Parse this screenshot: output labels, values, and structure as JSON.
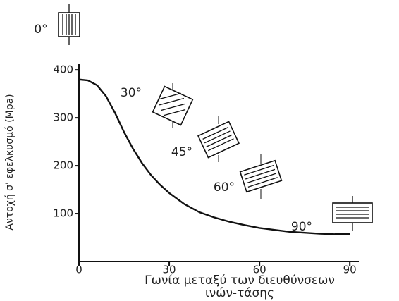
{
  "chart_data": {
    "type": "line",
    "y_label": "Αντοχή σ' εφελκυσμό (Mpa)",
    "x_label": [
      "Γωνία μεταξύ των διευθύνσεων",
      "ινών-τάσης"
    ],
    "annotations": [
      "0°",
      "30°",
      "45°",
      "60°",
      "90°"
    ],
    "x": [
      0,
      3,
      6,
      9,
      12,
      15,
      18,
      21,
      24,
      27,
      30,
      35,
      40,
      45,
      50,
      55,
      60,
      65,
      70,
      75,
      80,
      85,
      90
    ],
    "series": [
      {
        "color": "#111111",
        "values": [
          380,
          378,
          368,
          345,
          310,
          270,
          235,
          205,
          180,
          160,
          143,
          120,
          103,
          92,
          83,
          76,
          70,
          66,
          62,
          60,
          58,
          57,
          57
        ]
      }
    ],
    "xlim": [
      0,
      93
    ],
    "ylim": [
      0,
      412
    ],
    "xticks": [
      0,
      30,
      60,
      90
    ],
    "yticks": [
      100,
      200,
      300,
      400
    ]
  }
}
